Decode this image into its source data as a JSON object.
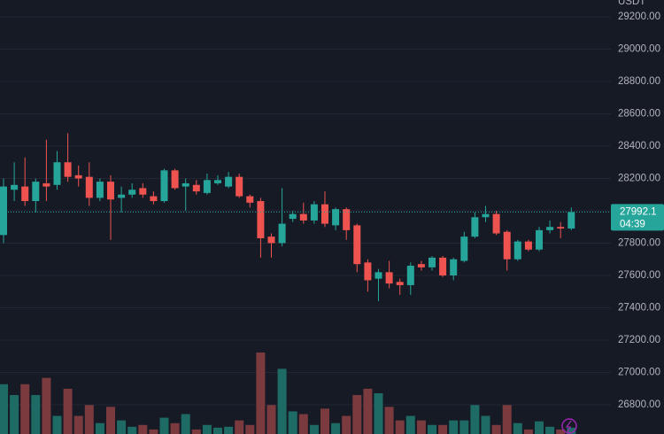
{
  "chart_data": {
    "type": "candlestick",
    "currency": "USDT",
    "open": [
      27850,
      28130,
      28150,
      28060,
      28170,
      28160,
      28300,
      28220,
      28210,
      28080,
      28180,
      28080,
      28100,
      28140,
      28090,
      28060,
      28250,
      28150,
      28160,
      28110,
      28170,
      28150,
      28210,
      28090,
      28060,
      27840,
      27800,
      27950,
      27980,
      27940,
      28040,
      27910,
      28010,
      27910,
      27680,
      27580,
      27620,
      27560,
      27540,
      27670,
      27650,
      27710,
      27600,
      27690,
      27840,
      27960,
      27980,
      27870,
      27700,
      27810,
      27760,
      27880,
      27900,
      27890
    ],
    "high": [
      28200,
      28300,
      28330,
      28200,
      28440,
      28370,
      28480,
      28280,
      28300,
      28200,
      28220,
      28150,
      28170,
      28170,
      28120,
      28260,
      28260,
      28200,
      28190,
      28230,
      28220,
      28240,
      28230,
      28100,
      28080,
      27860,
      28140,
      28000,
      28050,
      28060,
      28120,
      28020,
      28020,
      27920,
      27700,
      27640,
      27690,
      27580,
      27680,
      27690,
      27720,
      27720,
      27710,
      27870,
      27990,
      28030,
      28000,
      27880,
      27820,
      27820,
      27900,
      27940,
      27930,
      28020
    ],
    "low": [
      27800,
      28060,
      28030,
      27990,
      28060,
      28130,
      28180,
      28150,
      28030,
      28060,
      27820,
      27990,
      28080,
      28080,
      28040,
      28050,
      28130,
      28000,
      28100,
      28100,
      28160,
      28140,
      28080,
      28020,
      27710,
      27710,
      27780,
      27930,
      27920,
      27920,
      27900,
      27880,
      27820,
      27620,
      27500,
      27440,
      27520,
      27480,
      27480,
      27630,
      27630,
      27590,
      27570,
      27680,
      27830,
      27930,
      27850,
      27630,
      27690,
      27750,
      27750,
      27860,
      27830,
      27880
    ],
    "close": [
      28150,
      28160,
      28060,
      28180,
      28150,
      28300,
      28210,
      28200,
      28080,
      28180,
      28070,
      28100,
      28130,
      28100,
      28060,
      28250,
      28140,
      28170,
      28120,
      28190,
      28190,
      28210,
      28090,
      28050,
      27830,
      27800,
      27920,
      27980,
      27940,
      28040,
      27920,
      28010,
      27880,
      27670,
      27570,
      27620,
      27550,
      27540,
      27660,
      27650,
      27710,
      27600,
      27700,
      27840,
      27960,
      27980,
      27860,
      27700,
      27810,
      27760,
      27880,
      27900,
      27890,
      27992.1
    ],
    "volume": [
      55,
      43,
      55,
      43,
      62,
      20,
      50,
      20,
      32,
      12,
      30,
      15,
      8,
      10,
      5,
      18,
      12,
      22,
      5,
      10,
      7,
      8,
      15,
      10,
      90,
      32,
      72,
      25,
      22,
      10,
      28,
      12,
      20,
      43,
      50,
      45,
      30,
      15,
      20,
      15,
      10,
      10,
      15,
      15,
      32,
      20,
      10,
      32,
      12,
      5,
      14,
      8,
      5,
      7
    ],
    "up_color": "#26a69a",
    "down_color": "#ef5350",
    "volume_up_color": "#1e6b66",
    "volume_down_color": "#7a3a3e",
    "ylim": [
      26619,
      29304
    ],
    "yticks": [
      {
        "value": 26800,
        "label": "26800.00"
      },
      {
        "value": 27000,
        "label": "27000.00"
      },
      {
        "value": 27200,
        "label": "27200.00"
      },
      {
        "value": 27400,
        "label": "27400.00"
      },
      {
        "value": 27600,
        "label": "27600.00"
      },
      {
        "value": 27800,
        "label": "27800.00"
      },
      {
        "value": 28000,
        "label": "28000.00"
      },
      {
        "value": 28200,
        "label": "28200.00"
      },
      {
        "value": 28400,
        "label": "28400.00"
      },
      {
        "value": 28600,
        "label": "28600.00"
      },
      {
        "value": 28800,
        "label": "28800.00"
      },
      {
        "value": 29000,
        "label": "29000.00"
      },
      {
        "value": 29200,
        "label": "29200.00"
      }
    ],
    "grid": true,
    "last_price": 27992.1,
    "countdown": "04:39"
  }
}
